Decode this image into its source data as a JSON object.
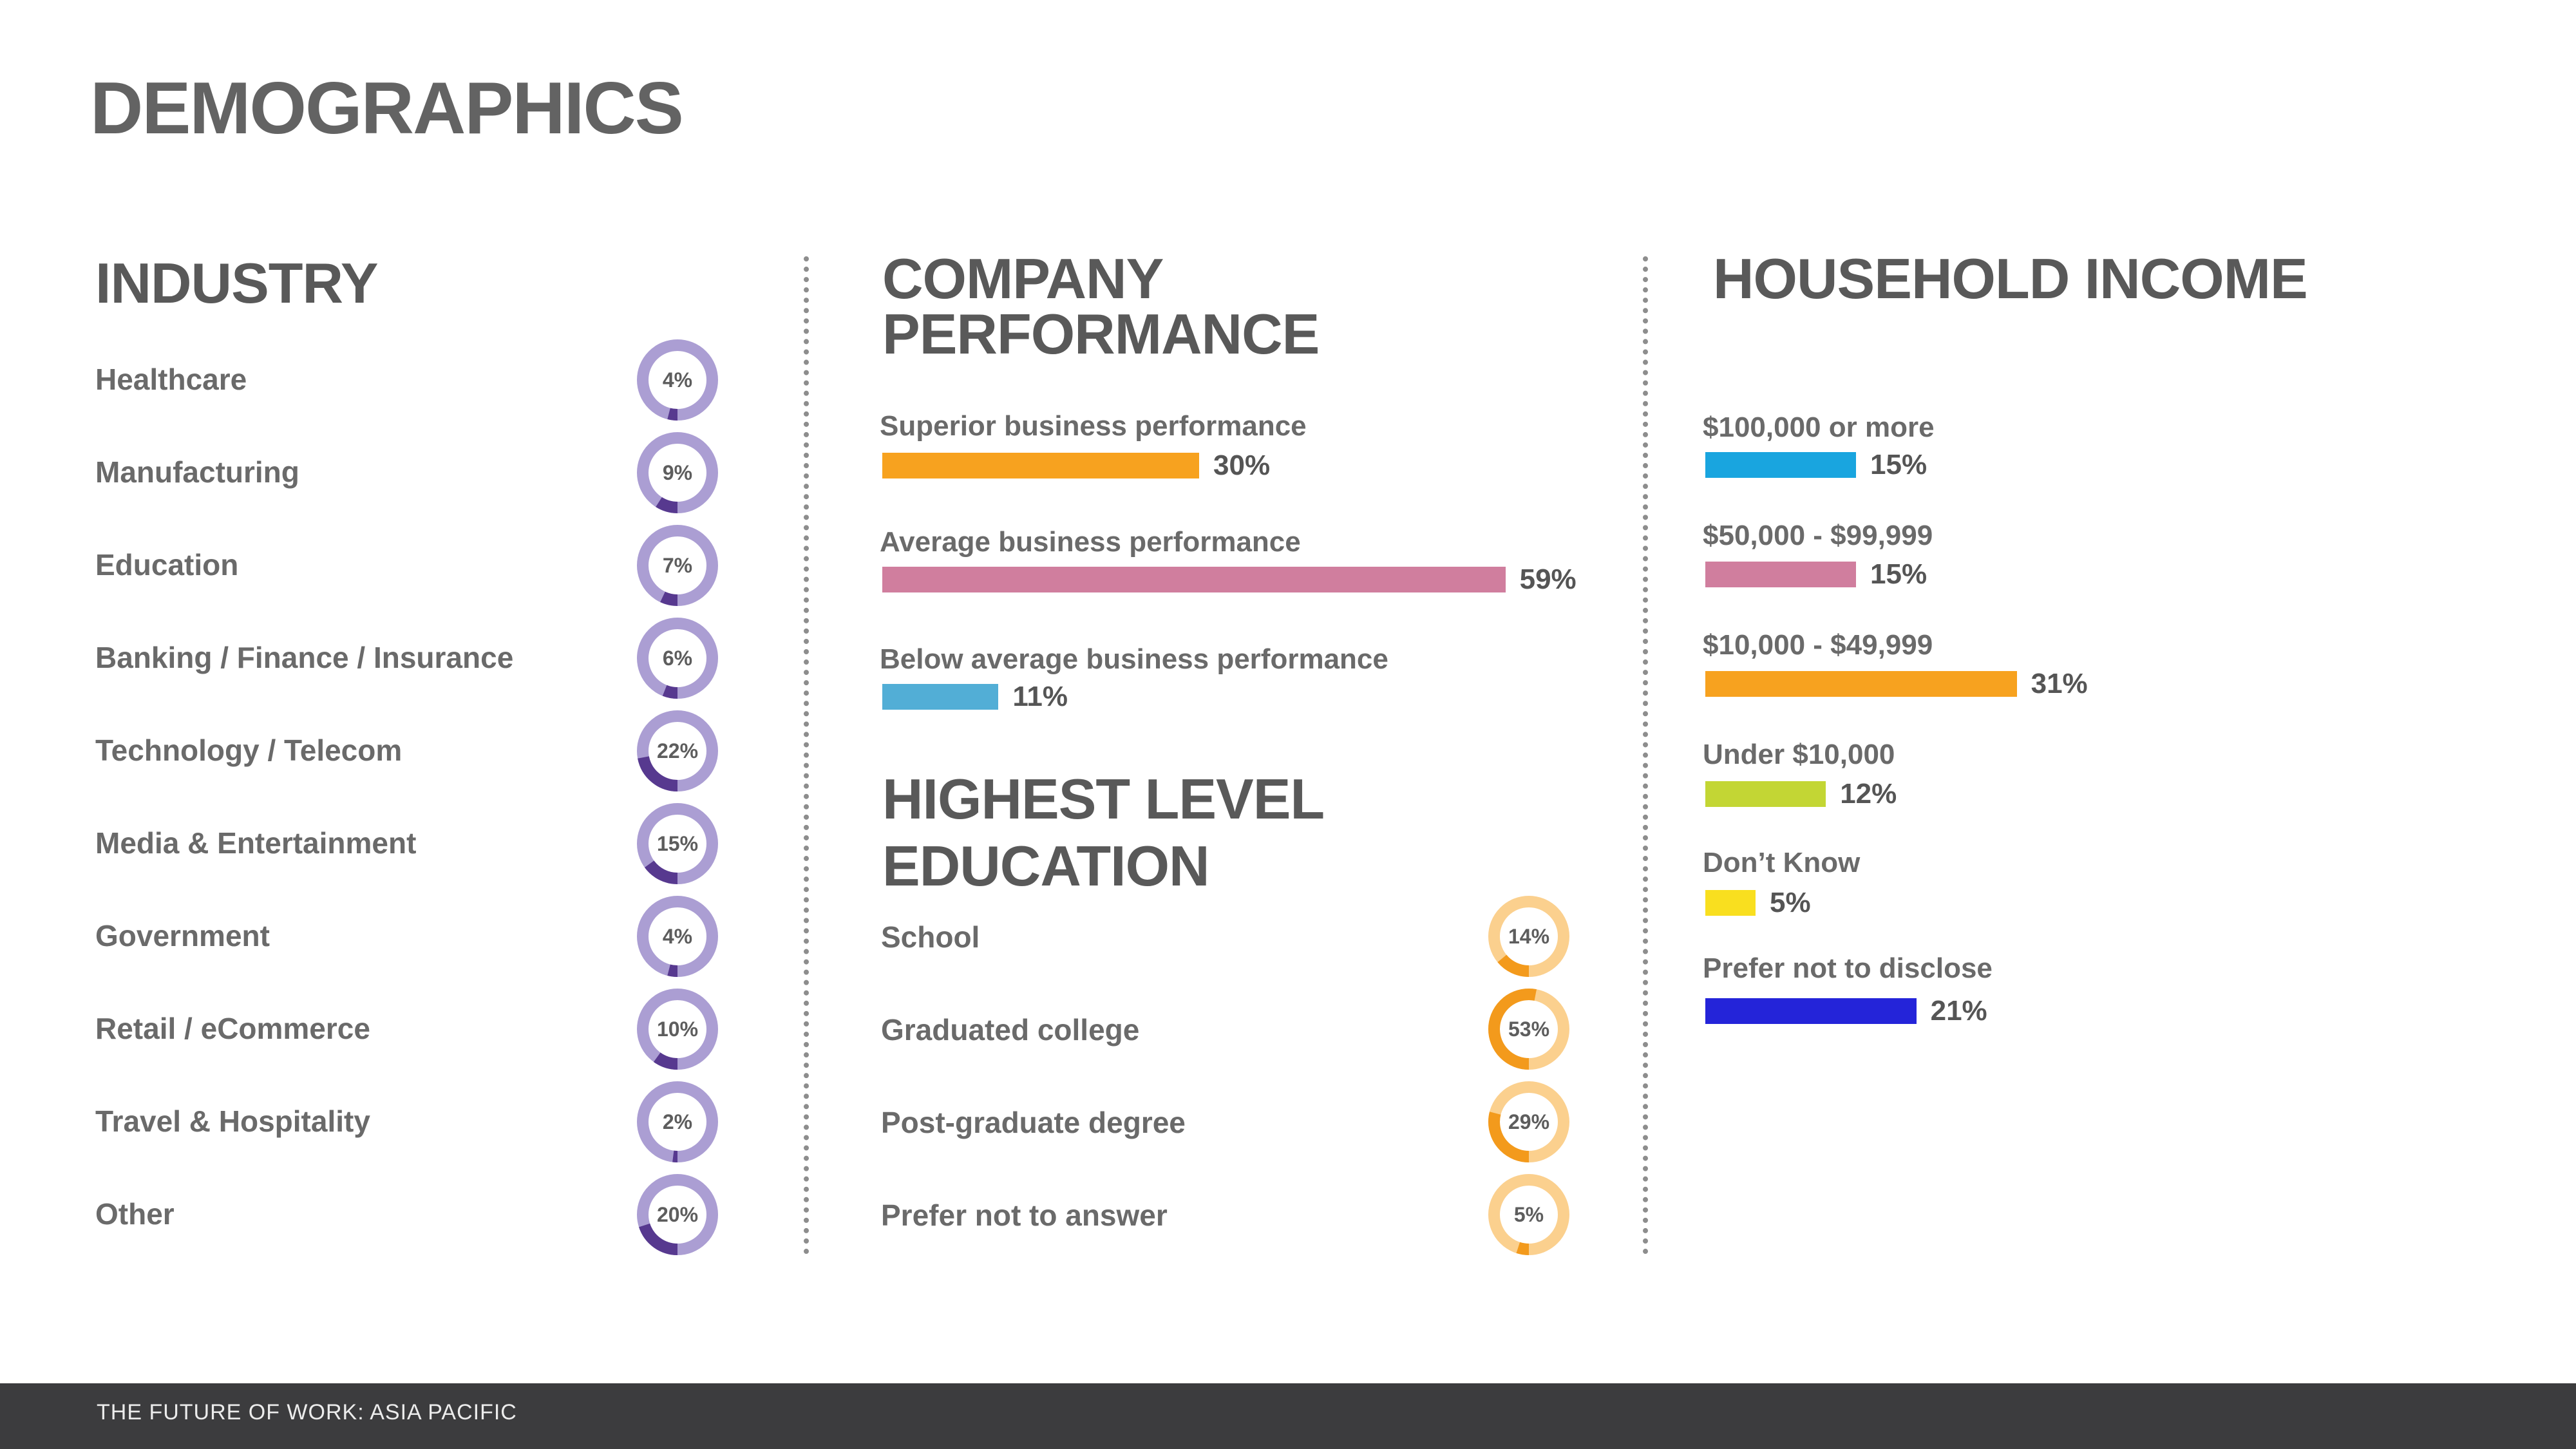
{
  "page": {
    "title": "DEMOGRAPHICS",
    "footer": "THE FUTURE OF WORK: ASIA PACIFIC"
  },
  "industry": {
    "title": "INDUSTRY"
  },
  "performance": {
    "title_line1": "COMPANY",
    "title_line2": "PERFORMANCE"
  },
  "education": {
    "title_line1": "HIGHEST LEVEL",
    "title_line2": "EDUCATION"
  },
  "income": {
    "title": "HOUSEHOLD INCOME"
  },
  "colors": {
    "industry_track": "#ab9ed3",
    "industry_fill": "#57398f",
    "education_track": "#fbd08e",
    "education_fill": "#f39a1c"
  },
  "chart_data": [
    {
      "type": "pie",
      "title": "INDUSTRY",
      "categories": [
        "Healthcare",
        "Manufacturing",
        "Education",
        "Banking / Finance / Insurance",
        "Technology / Telecom",
        "Media & Entertainment",
        "Government",
        "Retail / eCommerce",
        "Travel & Hospitality",
        "Other"
      ],
      "values": [
        4,
        9,
        7,
        6,
        22,
        15,
        4,
        10,
        2,
        20
      ],
      "labels": [
        "4%",
        "9%",
        "7%",
        "6%",
        "22%",
        "15%",
        "4%",
        "10%",
        "2%",
        "20%"
      ]
    },
    {
      "type": "bar",
      "title": "COMPANY PERFORMANCE",
      "categories": [
        "Superior business performance",
        "Average business performance",
        "Below average business performance"
      ],
      "values": [
        30,
        59,
        11
      ],
      "labels": [
        "30%",
        "59%",
        "11%"
      ],
      "colors": [
        "#f7a21f",
        "#d07e9e",
        "#52aed6"
      ]
    },
    {
      "type": "pie",
      "title": "HIGHEST LEVEL EDUCATION",
      "categories": [
        "School",
        "Graduated college",
        "Post-graduate degree",
        "Prefer not to answer"
      ],
      "values": [
        14,
        53,
        29,
        5
      ],
      "labels": [
        "14%",
        "53%",
        "29%",
        "5%"
      ]
    },
    {
      "type": "bar",
      "title": "HOUSEHOLD INCOME",
      "categories": [
        "$100,000 or more",
        "$50,000 - $99,999",
        "$10,000 - $49,999",
        "Under $10,000",
        "Don’t Know",
        "Prefer not to disclose"
      ],
      "values": [
        15,
        15,
        31,
        12,
        5,
        21
      ],
      "labels": [
        "15%",
        "15%",
        "31%",
        "12%",
        "5%",
        "21%"
      ],
      "colors": [
        "#19a5df",
        "#d07e9e",
        "#f7a21f",
        "#c3d634",
        "#f9df1f",
        "#2424d9"
      ]
    }
  ]
}
